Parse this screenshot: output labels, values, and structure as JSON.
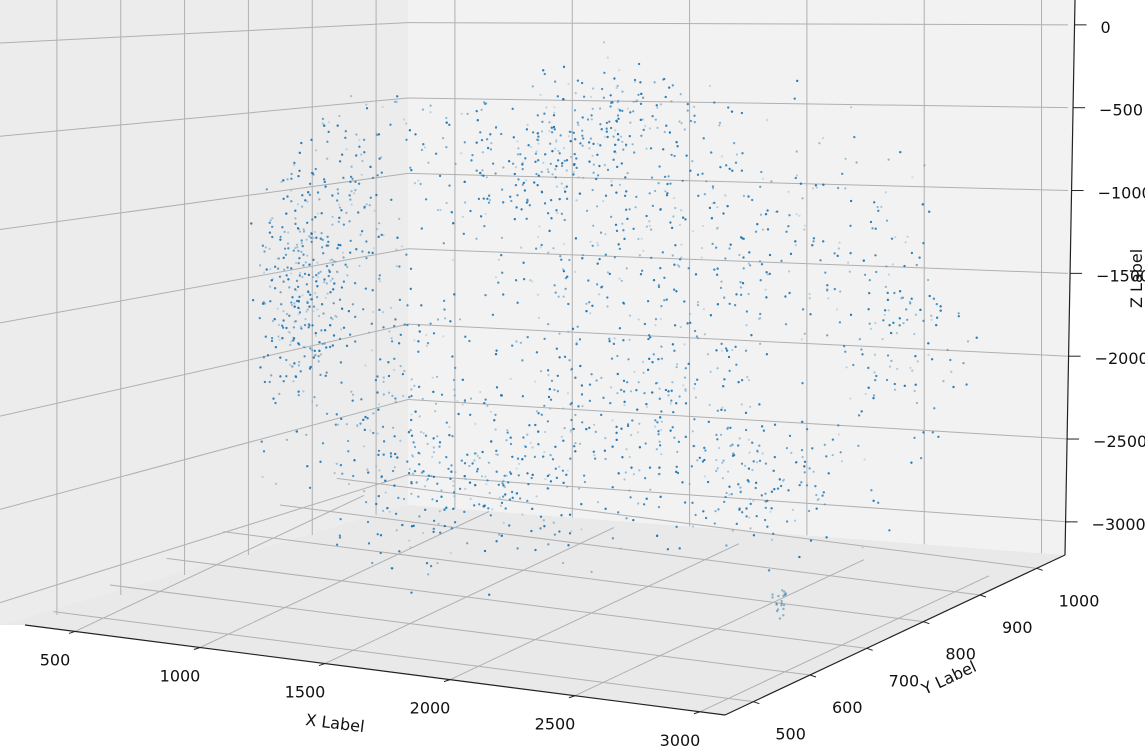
{
  "chart_data": {
    "type": "scatter",
    "projection": "3d",
    "title": "",
    "xlabel": "X Label",
    "ylabel": "Y Label",
    "zlabel": "Z Label",
    "x_ticks": [
      500,
      1000,
      1500,
      2000,
      2500,
      3000
    ],
    "y_ticks": [
      500,
      600,
      700,
      800,
      900,
      1000
    ],
    "z_ticks": [
      0,
      -500,
      -1000,
      -1500,
      -2000,
      -2500,
      -3000
    ],
    "x_tick_labels": [
      "500",
      "1000",
      "1500",
      "2000",
      "2500",
      "3000"
    ],
    "y_tick_labels": [
      "500",
      "600",
      "700",
      "800",
      "900",
      "1000"
    ],
    "z_tick_labels": [
      "0",
      "−500",
      "−1000",
      "−1500",
      "−2000",
      "−2500",
      "−3000"
    ],
    "xlim": [
      300,
      3100
    ],
    "ylim": [
      450,
      1050
    ],
    "zlim": [
      -3200,
      150
    ],
    "grid": true,
    "marker_color": "#1f77b4",
    "pane_color": "#f2f2f2",
    "grid_color": "#b0b0b0",
    "description_note": "",
    "series": [
      {
        "name": "",
        "point_count_approx": 60000,
        "x_range": [
          600,
          2900
        ],
        "y_range": [
          500,
          1000
        ],
        "z_range": [
          -3000,
          -100
        ]
      }
    ]
  }
}
